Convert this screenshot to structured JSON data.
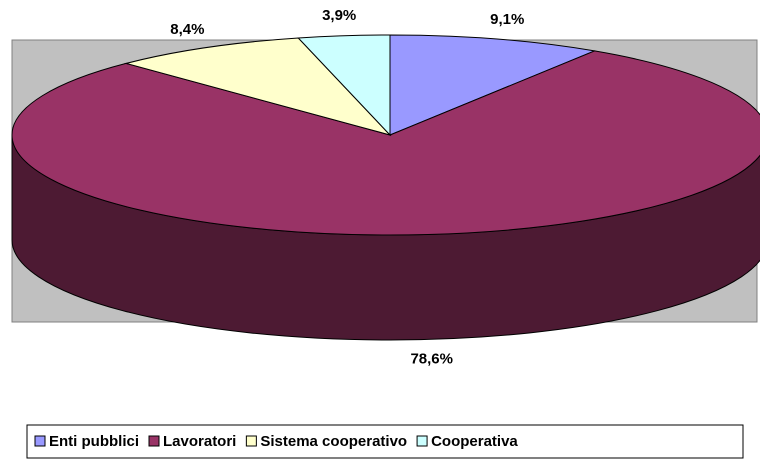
{
  "chart_data": {
    "type": "pie3d",
    "categories": [
      "Enti pubblici",
      "Lavoratori",
      "Sistema cooperativo",
      "Cooperativa"
    ],
    "values": [
      9.1,
      78.6,
      8.4,
      3.9
    ],
    "value_labels": [
      "9,1%",
      "78,6%",
      "8,4%",
      "3,9%"
    ],
    "colors": [
      "#9999ff",
      "#993366",
      "#ffffcc",
      "#ccffff"
    ],
    "legend": "bottom"
  }
}
